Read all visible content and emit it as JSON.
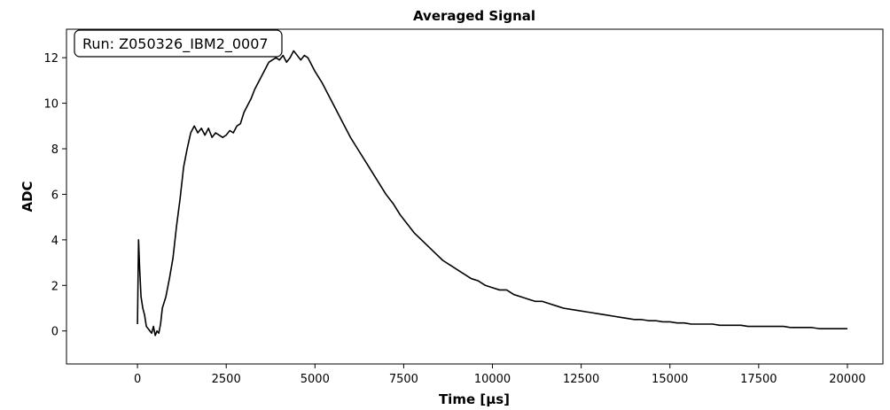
{
  "chart_data": {
    "type": "line",
    "title": "Averaged Signal",
    "xlabel": "Time [µs]",
    "ylabel": "ADC",
    "xlim": [
      -2000,
      21000
    ],
    "ylim": [
      -1.45,
      13.25
    ],
    "xticks": [
      0,
      2500,
      5000,
      7500,
      10000,
      12500,
      15000,
      17500,
      20000
    ],
    "yticks": [
      0,
      2,
      4,
      6,
      8,
      10,
      12
    ],
    "grid": false,
    "legend": "none",
    "annotation": "Run: Z050326_IBM2_0007",
    "annotation_position": "top-left",
    "line_color": "#000000",
    "series": [
      {
        "x": [
          0,
          30,
          60,
          100,
          150,
          200,
          250,
          300,
          350,
          400,
          450,
          500,
          550,
          600,
          650,
          700,
          800,
          900,
          1000,
          1100,
          1200,
          1300,
          1400,
          1500,
          1600,
          1700,
          1800,
          1900,
          2000,
          2100,
          2200,
          2300,
          2400,
          2500,
          2600,
          2700,
          2800,
          2900,
          3000,
          3100,
          3200,
          3300,
          3400,
          3500,
          3600,
          3700,
          3800,
          3900,
          4000,
          4100,
          4200,
          4300,
          4400,
          4500,
          4600,
          4700,
          4800,
          4900,
          5000,
          5200,
          5400,
          5600,
          5800,
          6000,
          6200,
          6400,
          6600,
          6800,
          7000,
          7200,
          7400,
          7600,
          7800,
          8000,
          8200,
          8400,
          8600,
          8800,
          9000,
          9200,
          9400,
          9600,
          9800,
          10000,
          10200,
          10400,
          10600,
          10800,
          11000,
          11200,
          11400,
          11600,
          11800,
          12000,
          12200,
          12400,
          12600,
          12800,
          13000,
          13200,
          13400,
          13600,
          13800,
          14000,
          14200,
          14400,
          14600,
          14800,
          15000,
          15200,
          15400,
          15600,
          15800,
          16000,
          16200,
          16400,
          16600,
          16800,
          17000,
          17200,
          17400,
          17600,
          17800,
          18000,
          18200,
          18400,
          18600,
          18800,
          19000,
          19200,
          19400,
          19600,
          19800,
          20000
        ],
        "values": [
          0.3,
          4.0,
          2.8,
          1.5,
          1.0,
          0.7,
          0.2,
          0.1,
          0.0,
          -0.1,
          0.2,
          -0.2,
          0.0,
          -0.1,
          0.3,
          1.0,
          1.5,
          2.3,
          3.2,
          4.6,
          5.8,
          7.2,
          8.0,
          8.7,
          9.0,
          8.7,
          8.9,
          8.6,
          8.9,
          8.5,
          8.7,
          8.6,
          8.5,
          8.6,
          8.8,
          8.7,
          9.0,
          9.1,
          9.6,
          9.9,
          10.2,
          10.6,
          10.9,
          11.2,
          11.5,
          11.8,
          11.9,
          12.0,
          11.9,
          12.1,
          11.8,
          12.0,
          12.3,
          12.1,
          11.9,
          12.1,
          12.0,
          11.7,
          11.4,
          10.9,
          10.3,
          9.7,
          9.1,
          8.5,
          8.0,
          7.5,
          7.0,
          6.5,
          6.0,
          5.6,
          5.1,
          4.7,
          4.3,
          4.0,
          3.7,
          3.4,
          3.1,
          2.9,
          2.7,
          2.5,
          2.3,
          2.2,
          2.0,
          1.9,
          1.8,
          1.8,
          1.6,
          1.5,
          1.4,
          1.3,
          1.3,
          1.2,
          1.1,
          1.0,
          0.95,
          0.9,
          0.85,
          0.8,
          0.75,
          0.7,
          0.65,
          0.6,
          0.55,
          0.5,
          0.5,
          0.45,
          0.45,
          0.4,
          0.4,
          0.35,
          0.35,
          0.3,
          0.3,
          0.3,
          0.3,
          0.25,
          0.25,
          0.25,
          0.25,
          0.2,
          0.2,
          0.2,
          0.2,
          0.2,
          0.2,
          0.15,
          0.15,
          0.15,
          0.15,
          0.1,
          0.1,
          0.1,
          0.1,
          0.1
        ]
      }
    ]
  }
}
